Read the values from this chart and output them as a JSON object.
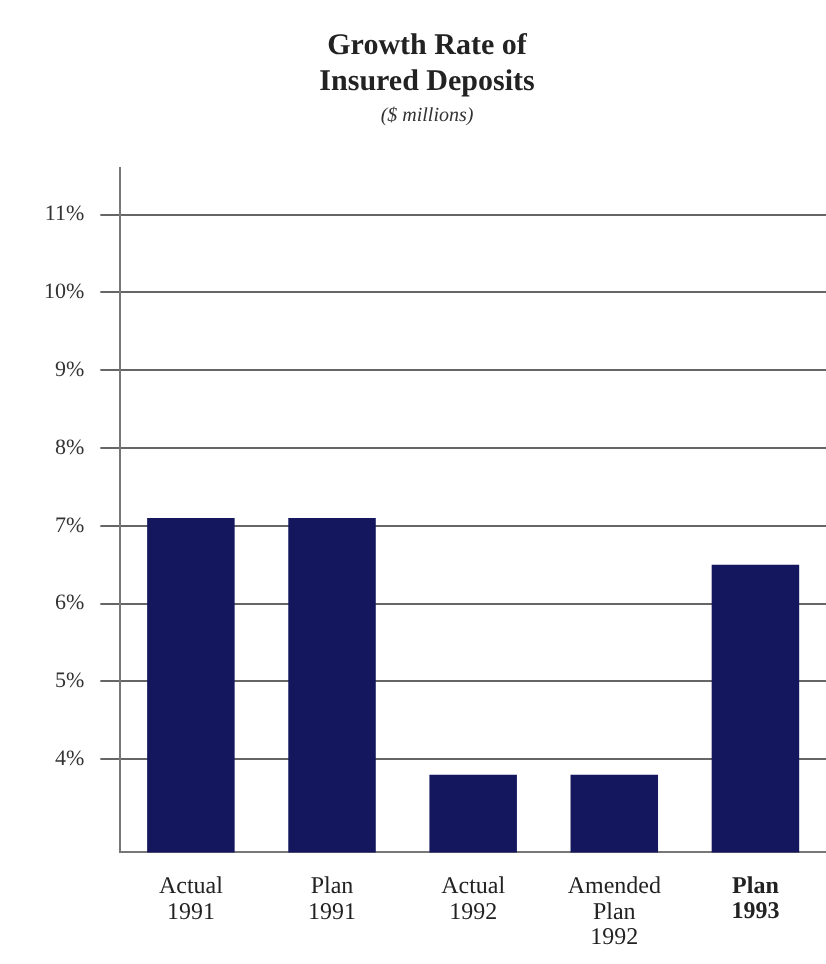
{
  "chart_data": {
    "type": "bar",
    "title": "Growth Rate of Insured Deposits",
    "subtitle": "($ millions)",
    "categories": [
      "Actual 1991",
      "Plan 1991",
      "Actual 1992",
      "Amended Plan 1992",
      "Plan 1993"
    ],
    "values": [
      7.1,
      7.1,
      3.8,
      3.8,
      6.5
    ],
    "color": "#14175e",
    "ylim": [
      2.8,
      11.6
    ],
    "yticks": [
      {
        "value": 4,
        "label": "4%"
      },
      {
        "value": 5,
        "label": "5%"
      },
      {
        "value": 6,
        "label": "6%"
      },
      {
        "value": 7,
        "label": "7%"
      },
      {
        "value": 8,
        "label": "8%"
      },
      {
        "value": 9,
        "label": "9%"
      },
      {
        "value": 10,
        "label": "10%"
      },
      {
        "value": 11,
        "label": "11%"
      }
    ],
    "grid": "y"
  }
}
